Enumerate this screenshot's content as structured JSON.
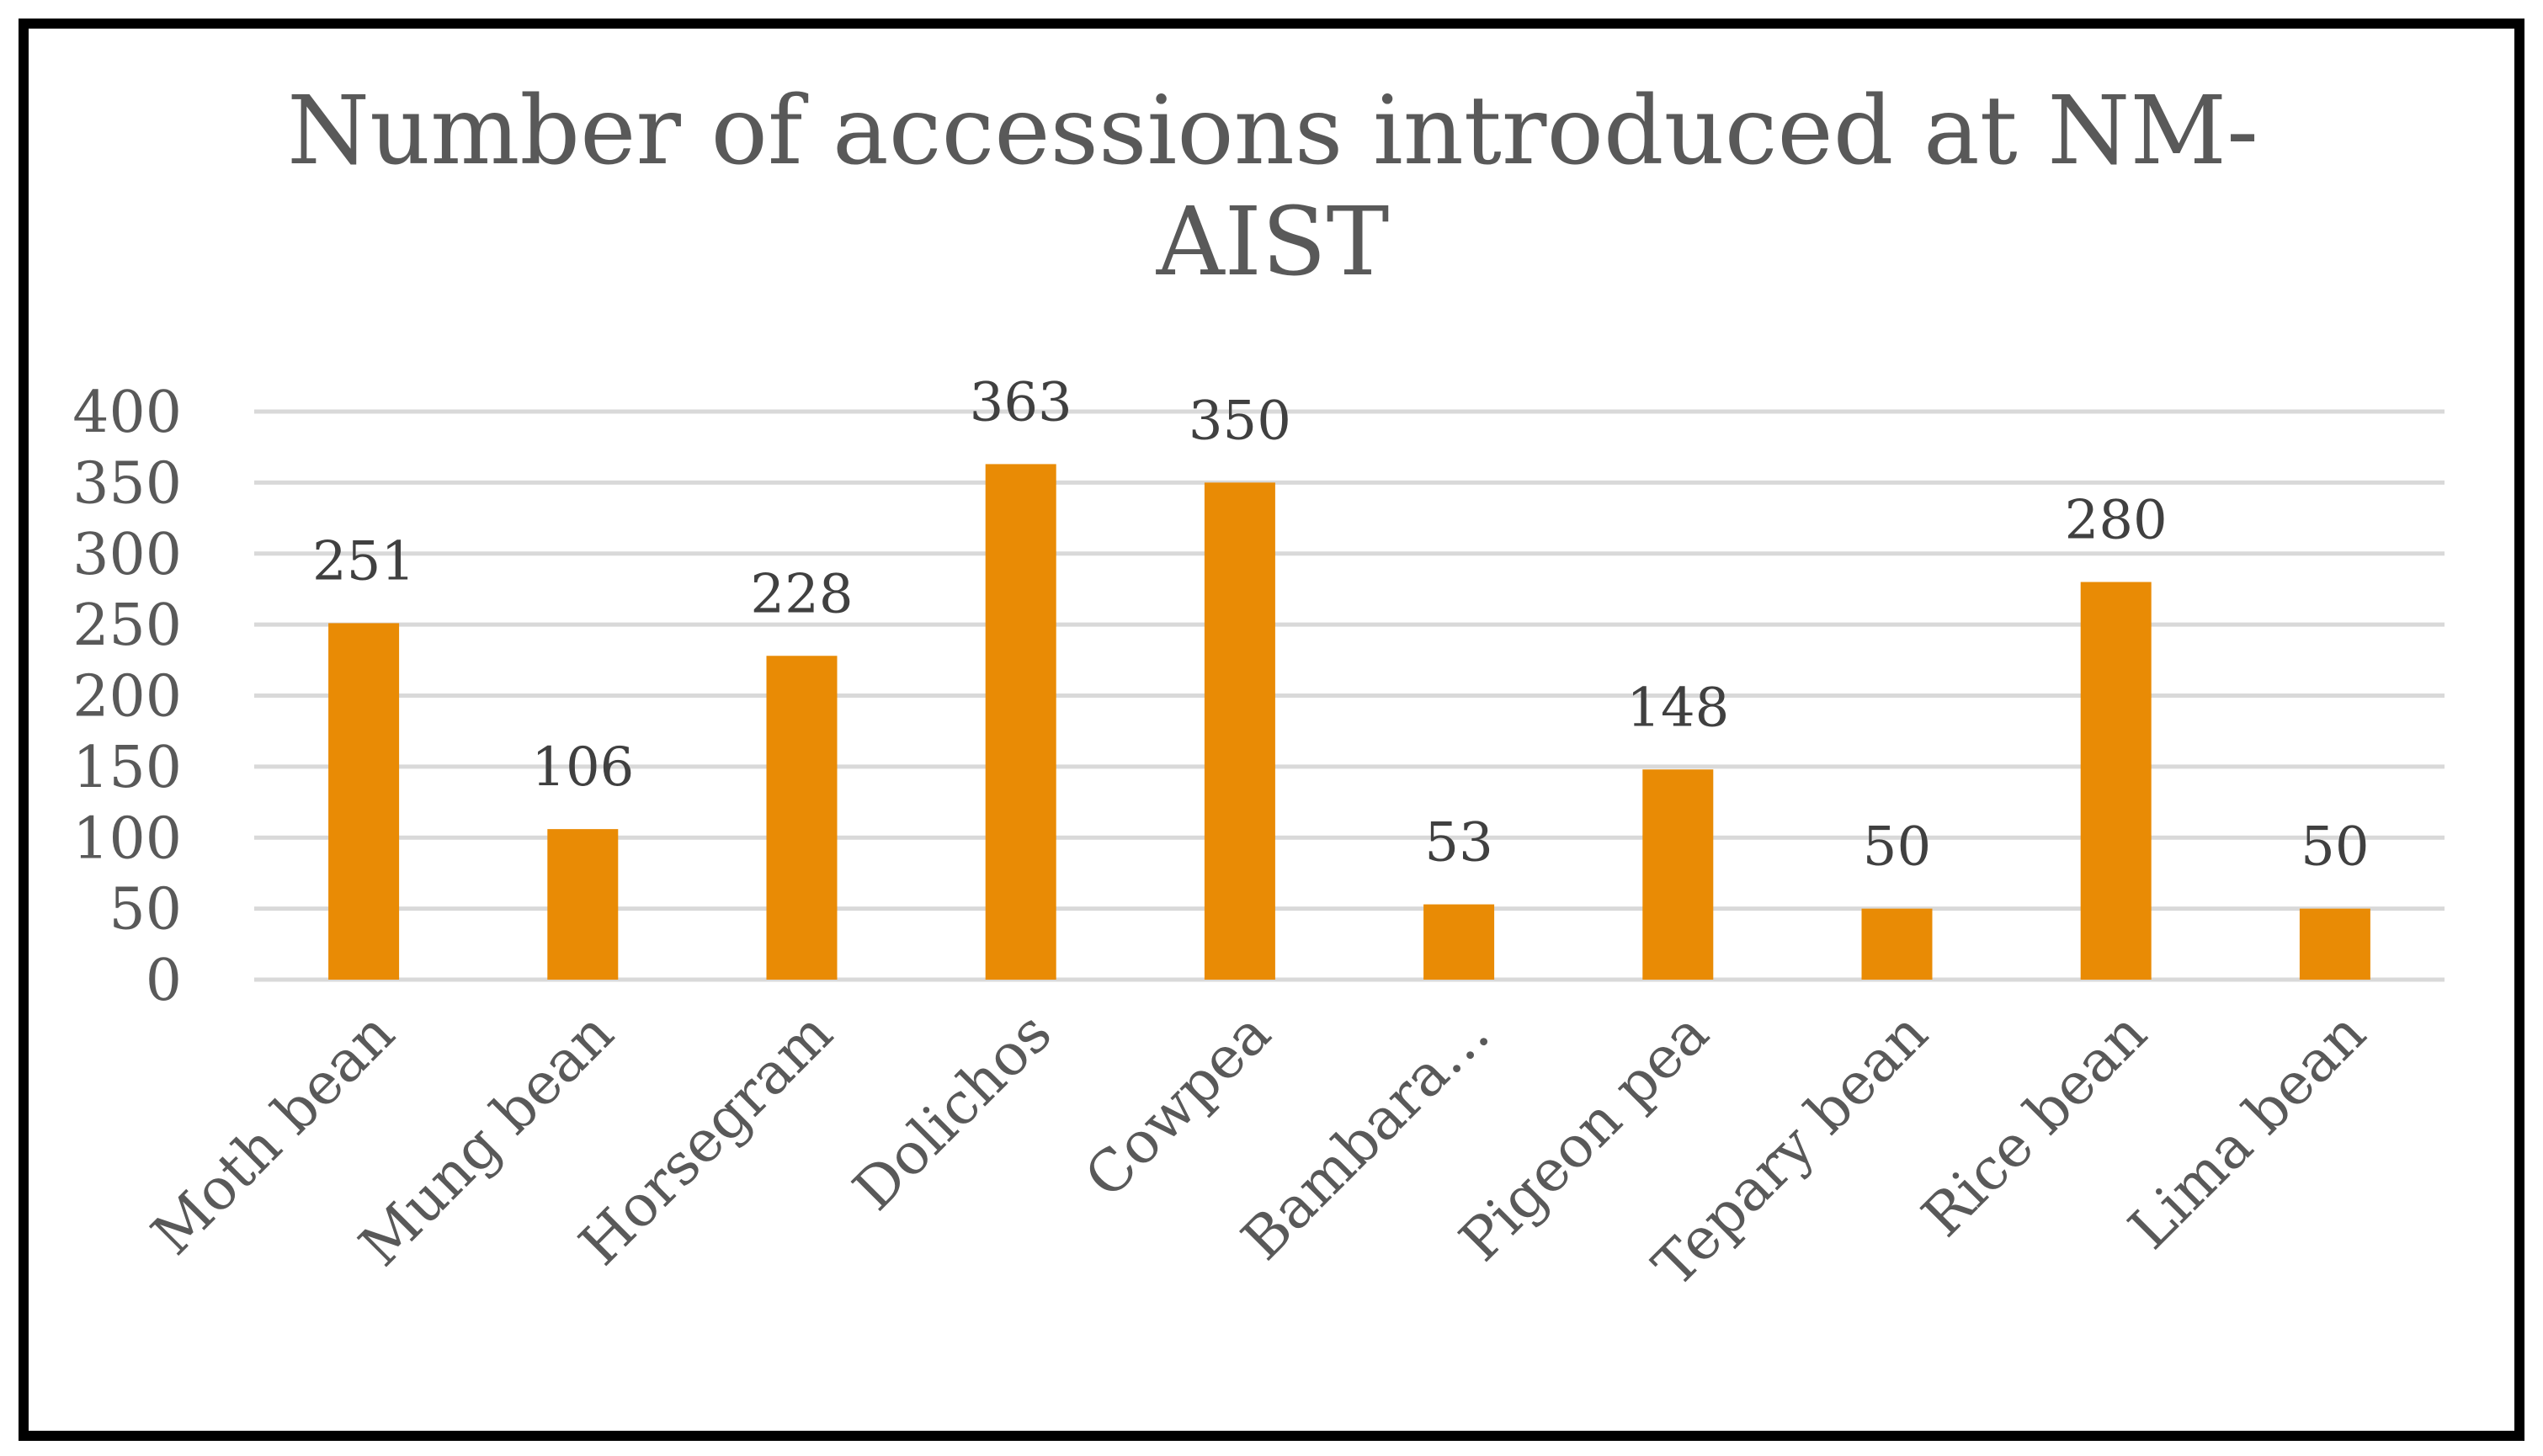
{
  "colors": {
    "bar": "#E98B05",
    "grid": "#D9D9D9",
    "text": "#595959",
    "frame": "#000000"
  },
  "chart_data": {
    "type": "bar",
    "title": "Number of accessions introduced at NM-AIST",
    "title_lines": [
      "Number of accessions introduced at NM-",
      "AIST"
    ],
    "categories": [
      "Moth bean",
      "Mung bean",
      "Horsegram",
      "Dolichos",
      "Cowpea",
      "Bambara…",
      "Pigeon pea",
      "Tepary bean",
      "Rice bean",
      "Lima bean"
    ],
    "values": [
      251,
      106,
      228,
      363,
      350,
      53,
      148,
      50,
      280,
      50
    ],
    "data_labels": [
      "251",
      "106",
      "228",
      "363",
      "350",
      "53",
      "148",
      "50",
      "280",
      "50"
    ],
    "yticks": [
      "0",
      "50",
      "100",
      "150",
      "200",
      "250",
      "300",
      "350",
      "400"
    ],
    "ylim": [
      0,
      400
    ],
    "grid": true,
    "legend": "none",
    "xlabel": "",
    "ylabel": ""
  }
}
